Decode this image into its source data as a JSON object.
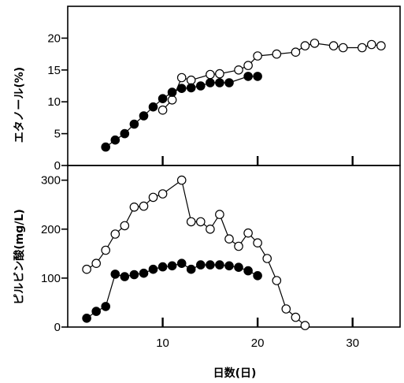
{
  "chart_data": [
    {
      "type": "line",
      "panel": "top",
      "ylabel": "エタノール(%)",
      "ylim": [
        0,
        25
      ],
      "xlim": [
        0,
        35
      ],
      "yticks": [
        "0",
        "5",
        "10",
        "15",
        "20"
      ],
      "yticks_values": [
        0,
        5,
        10,
        15,
        20
      ],
      "xticks_values": [
        10,
        20,
        30
      ],
      "grid": false,
      "series": [
        {
          "marker": "open-circle",
          "points": [
            [
              10,
              8.7
            ],
            [
              11,
              10.3
            ],
            [
              12,
              13.8
            ],
            [
              13,
              13.4
            ],
            [
              15,
              14.3
            ],
            [
              16,
              14.4
            ],
            [
              18,
              15
            ],
            [
              19,
              15.7
            ],
            [
              20,
              17.2
            ],
            [
              22,
              17.5
            ],
            [
              24,
              17.8
            ],
            [
              25,
              18.8
            ],
            [
              26,
              19.2
            ],
            [
              28,
              18.8
            ],
            [
              29,
              18.5
            ],
            [
              31,
              18.5
            ],
            [
              32,
              19
            ],
            [
              33,
              18.8
            ]
          ]
        },
        {
          "marker": "filled-circle",
          "points": [
            [
              4,
              2.9
            ],
            [
              5,
              4
            ],
            [
              6,
              5
            ],
            [
              7,
              6.5
            ],
            [
              8,
              7.8
            ],
            [
              9,
              9.2
            ],
            [
              10,
              10.5
            ],
            [
              11,
              11.5
            ],
            [
              12,
              12.1
            ],
            [
              13,
              12.2
            ],
            [
              14,
              12.5
            ],
            [
              15,
              13
            ],
            [
              16,
              13
            ],
            [
              17,
              13
            ],
            [
              19,
              14
            ],
            [
              20,
              14
            ]
          ]
        }
      ]
    },
    {
      "type": "line",
      "panel": "bottom",
      "ylabel": "ピルビン酸(mg/L)",
      "xlabel": "日数(日)",
      "ylim": [
        0,
        330
      ],
      "xlim": [
        0,
        35
      ],
      "yticks": [
        "0",
        "100",
        "200",
        "300"
      ],
      "yticks_values": [
        0,
        100,
        200,
        300
      ],
      "xticks": [
        "10",
        "20",
        "30"
      ],
      "xticks_values": [
        10,
        20,
        30
      ],
      "grid": false,
      "series": [
        {
          "marker": "open-circle",
          "points": [
            [
              2,
              118
            ],
            [
              3,
              130
            ],
            [
              4,
              157
            ],
            [
              5,
              190
            ],
            [
              6,
              207
            ],
            [
              7,
              245
            ],
            [
              8,
              247
            ],
            [
              9,
              265
            ],
            [
              10,
              272
            ],
            [
              12,
              300
            ],
            [
              13,
              215
            ],
            [
              14,
              215
            ],
            [
              15,
              200
            ],
            [
              16,
              230
            ],
            [
              17,
              180
            ],
            [
              18,
              165
            ],
            [
              19,
              192
            ],
            [
              20,
              172
            ],
            [
              21,
              140
            ],
            [
              22,
              95
            ],
            [
              23,
              37
            ],
            [
              24,
              20
            ],
            [
              25,
              3
            ]
          ]
        },
        {
          "marker": "filled-circle",
          "points": [
            [
              2,
              18
            ],
            [
              3,
              32
            ],
            [
              4,
              42
            ],
            [
              5,
              108
            ],
            [
              6,
              103
            ],
            [
              7,
              107
            ],
            [
              8,
              110
            ],
            [
              9,
              118
            ],
            [
              10,
              123
            ],
            [
              11,
              125
            ],
            [
              12,
              130
            ],
            [
              13,
              118
            ],
            [
              14,
              127
            ],
            [
              15,
              127
            ],
            [
              16,
              127
            ],
            [
              17,
              125
            ],
            [
              18,
              122
            ],
            [
              19,
              115
            ],
            [
              20,
              105
            ]
          ]
        }
      ]
    }
  ]
}
